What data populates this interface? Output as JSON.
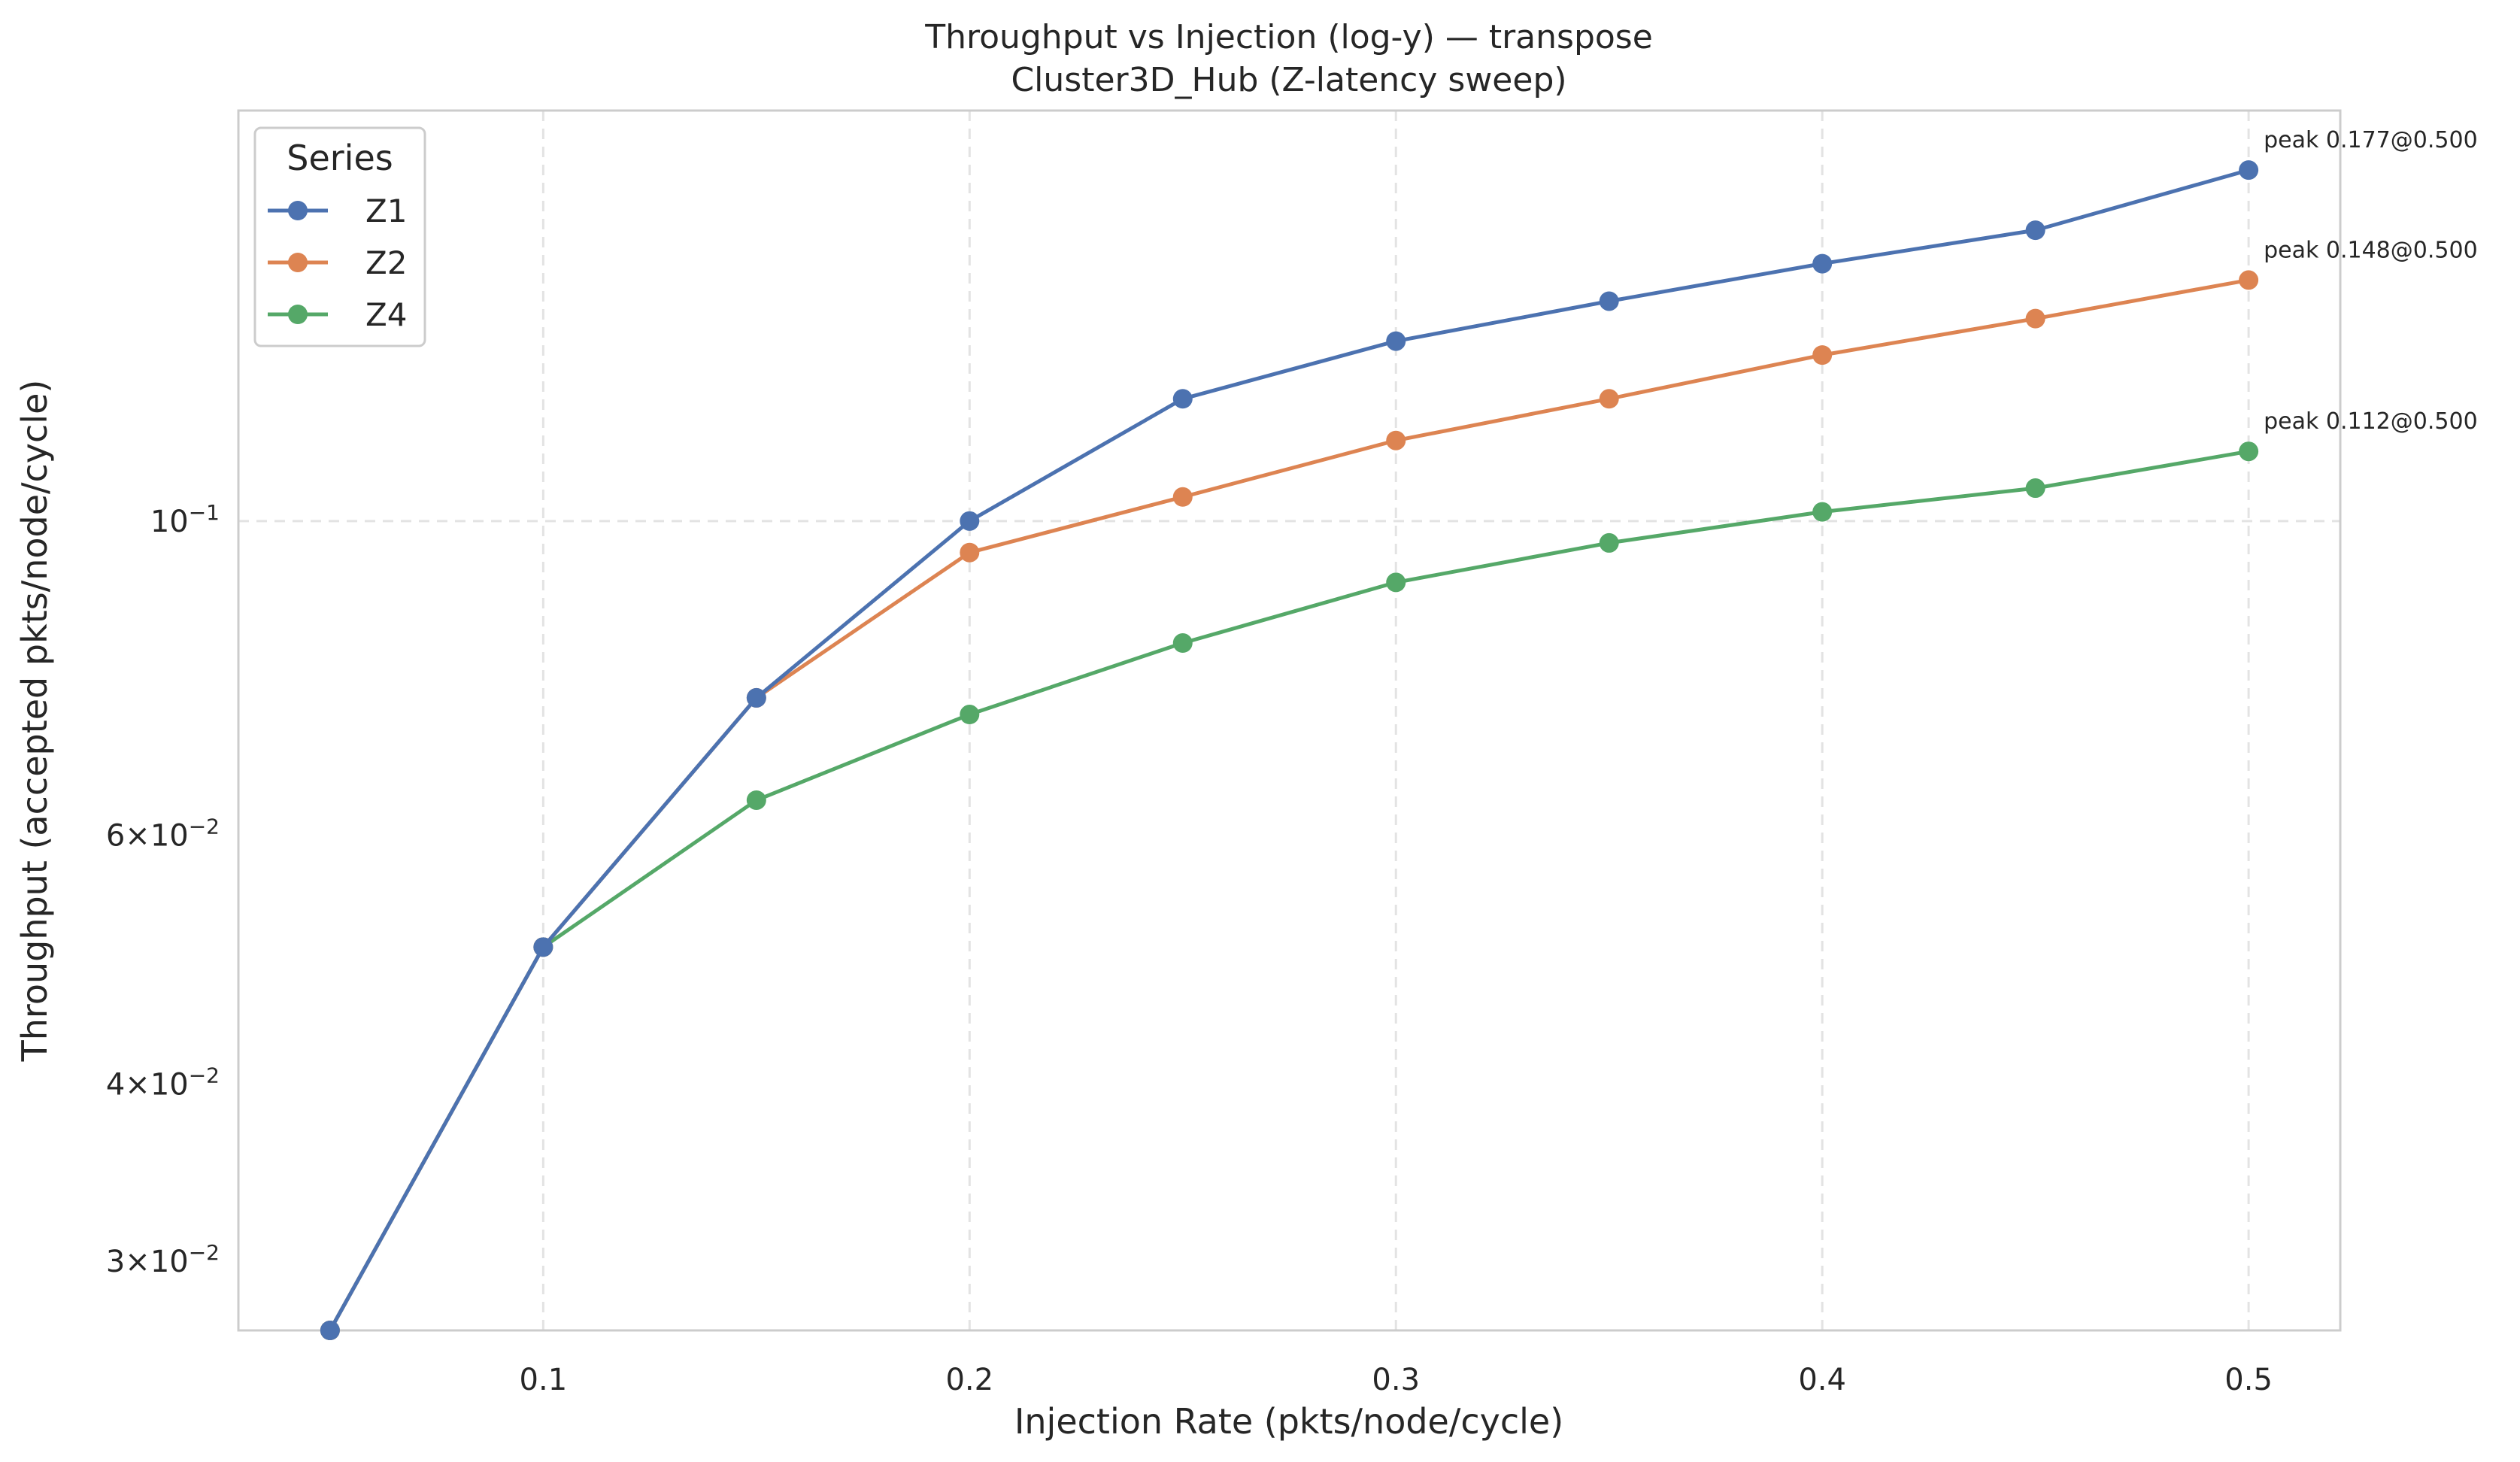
{
  "chart_data": {
    "type": "line",
    "title": "Throughput vs Injection (log-y) — transpose",
    "subtitle": "Cluster3D_Hub (Z-latency sweep)",
    "xlabel": "Injection Rate (pkts/node/cycle)",
    "ylabel": "Throughput (accepted pkts/node/cycle)",
    "y_scale": "log",
    "xlim": [
      0.0285,
      0.5215
    ],
    "ylim": [
      0.0268,
      0.195
    ],
    "x_ticks": [
      0.1,
      0.2,
      0.3,
      0.4,
      0.5
    ],
    "x_tick_labels": [
      "0.1",
      "0.2",
      "0.3",
      "0.4",
      "0.5"
    ],
    "y_ticks": [
      {
        "value": 0.1,
        "mantissa": "",
        "base": "10",
        "exp": "−1"
      },
      {
        "value": 0.06,
        "mantissa": "6×",
        "base": "10",
        "exp": "−2"
      },
      {
        "value": 0.04,
        "mantissa": "4×",
        "base": "10",
        "exp": "−2"
      },
      {
        "value": 0.03,
        "mantissa": "3×",
        "base": "10",
        "exp": "−2"
      }
    ],
    "grid": true,
    "legend_title": "Series",
    "legend_position": "top-left",
    "x": [
      0.05,
      0.1,
      0.15,
      0.2,
      0.25,
      0.3,
      0.35,
      0.4,
      0.45,
      0.5
    ],
    "series": [
      {
        "name": "Z1",
        "color": "#4c72b0",
        "values": [
          0.0268,
          0.05,
          0.075,
          0.1,
          0.122,
          0.134,
          0.143,
          0.152,
          0.1605,
          0.177
        ]
      },
      {
        "name": "Z2",
        "color": "#dd8452",
        "values": [
          0.0268,
          0.05,
          0.075,
          0.095,
          0.104,
          0.114,
          0.122,
          0.131,
          0.139,
          0.148
        ]
      },
      {
        "name": "Z4",
        "color": "#55a868",
        "values": [
          0.0268,
          0.05,
          0.0635,
          0.073,
          0.082,
          0.0905,
          0.0965,
          0.1015,
          0.1055,
          0.112
        ]
      }
    ],
    "annotations": [
      "peak 0.177@0.500",
      "peak 0.148@0.500",
      "peak 0.112@0.500"
    ]
  }
}
